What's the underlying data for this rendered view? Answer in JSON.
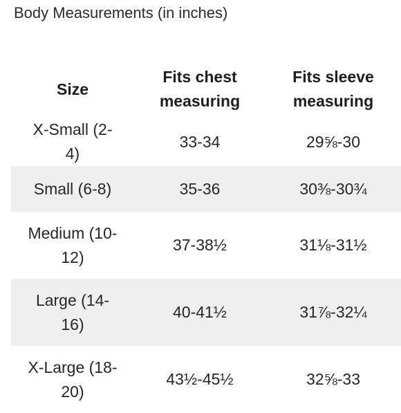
{
  "title": "Body Measurements (in inches)",
  "table": {
    "headers": [
      "Size",
      "Fits chest measuring",
      "Fits sleeve measuring"
    ],
    "rows": [
      {
        "size": "X-Small (2-4)",
        "chest": "33-34",
        "sleeve": "29⅝-30"
      },
      {
        "size": "Small (6-8)",
        "chest": "35-36",
        "sleeve": "30⅜-30¾"
      },
      {
        "size": "Medium (10-12)",
        "chest": "37-38½",
        "sleeve": "31⅛-31½"
      },
      {
        "size": "Large (14-16)",
        "chest": "40-41½",
        "sleeve": "31⅞-32¼"
      },
      {
        "size": "X-Large (18-20)",
        "chest": "43½-45½",
        "sleeve": "32⅝-33"
      }
    ]
  },
  "colors": {
    "shaded_row": "#efefef",
    "text": "#222222"
  }
}
